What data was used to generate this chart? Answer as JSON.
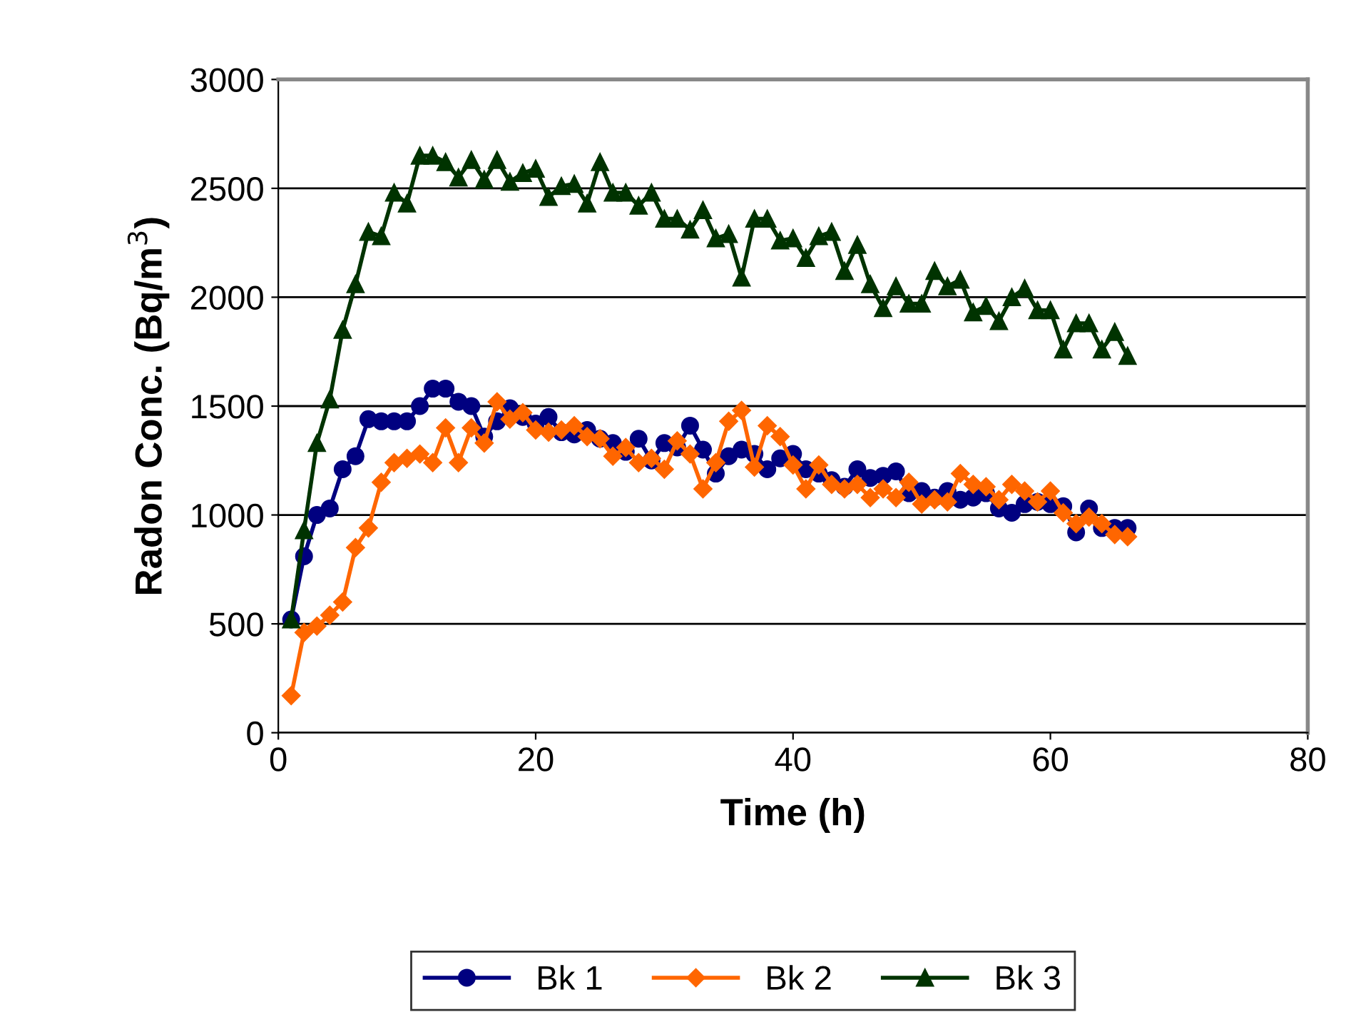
{
  "chart_data": {
    "type": "line",
    "xlabel": "Time (h)",
    "ylabel": "Radon Conc. (Bq/m$^{3}$)",
    "x": [
      1,
      2,
      3,
      4,
      5,
      6,
      7,
      8,
      9,
      10,
      11,
      12,
      13,
      14,
      15,
      16,
      17,
      18,
      19,
      20,
      21,
      22,
      23,
      24,
      25,
      26,
      27,
      28,
      29,
      30,
      31,
      32,
      33,
      34,
      35,
      36,
      37,
      38,
      39,
      40,
      41,
      42,
      43,
      44,
      45,
      46,
      47,
      48,
      49,
      50,
      51,
      52,
      53,
      54,
      55,
      56,
      57,
      58,
      59,
      60,
      61,
      62,
      63,
      64,
      65,
      66
    ],
    "series": [
      {
        "name": "Bk 1",
        "color": "#000080",
        "marker": "circle",
        "values": [
          520,
          810,
          1000,
          1030,
          1210,
          1270,
          1440,
          1430,
          1430,
          1430,
          1500,
          1580,
          1580,
          1520,
          1500,
          1360,
          1430,
          1490,
          1450,
          1420,
          1450,
          1380,
          1370,
          1390,
          1350,
          1330,
          1290,
          1350,
          1250,
          1330,
          1310,
          1410,
          1300,
          1190,
          1270,
          1300,
          1280,
          1210,
          1260,
          1280,
          1210,
          1190,
          1160,
          1130,
          1210,
          1170,
          1180,
          1200,
          1100,
          1110,
          1080,
          1110,
          1070,
          1080,
          1100,
          1030,
          1010,
          1050,
          1060,
          1050,
          1040,
          920,
          1030,
          940,
          940,
          940
        ]
      },
      {
        "name": "Bk 2",
        "color": "#ff6600",
        "marker": "diamond",
        "values": [
          170,
          460,
          490,
          540,
          600,
          850,
          940,
          1150,
          1240,
          1260,
          1280,
          1240,
          1400,
          1240,
          1400,
          1330,
          1520,
          1440,
          1470,
          1390,
          1380,
          1390,
          1410,
          1360,
          1350,
          1270,
          1310,
          1240,
          1260,
          1210,
          1340,
          1280,
          1120,
          1240,
          1430,
          1480,
          1220,
          1410,
          1360,
          1230,
          1120,
          1230,
          1140,
          1120,
          1140,
          1080,
          1120,
          1080,
          1150,
          1050,
          1070,
          1060,
          1190,
          1140,
          1130,
          1070,
          1140,
          1110,
          1060,
          1110,
          1010,
          960,
          990,
          960,
          910,
          900
        ]
      },
      {
        "name": "Bk 3",
        "color": "#003300",
        "marker": "triangle",
        "values": [
          520,
          930,
          1330,
          1530,
          1850,
          2060,
          2300,
          2280,
          2480,
          2430,
          2650,
          2650,
          2620,
          2550,
          2630,
          2540,
          2630,
          2530,
          2570,
          2590,
          2460,
          2510,
          2520,
          2430,
          2620,
          2480,
          2480,
          2420,
          2480,
          2360,
          2360,
          2310,
          2400,
          2270,
          2290,
          2090,
          2360,
          2360,
          2260,
          2270,
          2180,
          2280,
          2300,
          2120,
          2240,
          2060,
          1950,
          2050,
          1970,
          1970,
          2120,
          2050,
          2080,
          1930,
          1960,
          1890,
          2000,
          2040,
          1940,
          1940,
          1760,
          1880,
          1880,
          1760,
          1840,
          1730
        ]
      }
    ],
    "xlim": [
      0,
      80
    ],
    "xticks": [
      0,
      20,
      40,
      60,
      80
    ],
    "ylim": [
      0,
      3000
    ],
    "yticks": [
      0,
      500,
      1000,
      1500,
      2000,
      2500,
      3000
    ],
    "grid": "y",
    "legend": "bottom",
    "line_style": "solid"
  }
}
